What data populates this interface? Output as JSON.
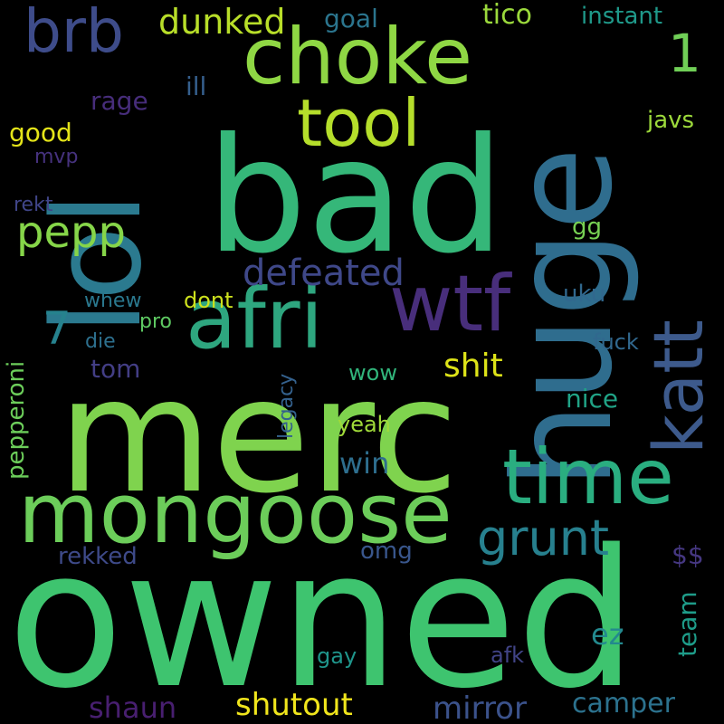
{
  "words": [
    {
      "text": "owned",
      "color": "#3ec46f"
    },
    {
      "text": "merc",
      "color": "#7fd34e"
    },
    {
      "text": "bad",
      "color": "#35b779"
    },
    {
      "text": "huge",
      "color": "#2f6d8e"
    },
    {
      "text": "lol",
      "color": "#2b7a8f"
    },
    {
      "text": "mongoose",
      "color": "#6ccd5a"
    },
    {
      "text": "choke",
      "color": "#8fd744"
    },
    {
      "text": "afri",
      "color": "#2ea67f"
    },
    {
      "text": "time",
      "color": "#2aae80"
    },
    {
      "text": "katt",
      "color": "#3d5a8c"
    },
    {
      "text": "wtf",
      "color": "#482e7b"
    },
    {
      "text": "tool",
      "color": "#b5de2b"
    },
    {
      "text": "brb",
      "color": "#3e4c8a"
    },
    {
      "text": "grunt",
      "color": "#27808e"
    },
    {
      "text": "pepp",
      "color": "#86d549"
    },
    {
      "text": "defeated",
      "color": "#3f4889"
    },
    {
      "text": "dunked",
      "color": "#b8de29"
    },
    {
      "text": "1",
      "color": "#70cf57"
    },
    {
      "text": "7",
      "color": "#26828e"
    },
    {
      "text": "shit",
      "color": "#dde318"
    },
    {
      "text": "shutout",
      "color": "#f0e51c"
    },
    {
      "text": "mirror",
      "color": "#3b528b"
    },
    {
      "text": "shaun",
      "color": "#481f70"
    },
    {
      "text": "camper",
      "color": "#2c728e"
    },
    {
      "text": "pepperoni",
      "color": "#6ccd5a"
    },
    {
      "text": "win",
      "color": "#2e6e8e"
    },
    {
      "text": "tom",
      "color": "#433e85"
    },
    {
      "text": "good",
      "color": "#e4e419"
    },
    {
      "text": "rage",
      "color": "#472d7b"
    },
    {
      "text": "ill",
      "color": "#355f8d"
    },
    {
      "text": "goal",
      "color": "#2b758e"
    },
    {
      "text": "tico",
      "color": "#9bd93c"
    },
    {
      "text": "instant",
      "color": "#1f998a"
    },
    {
      "text": "javs",
      "color": "#9cd93b"
    },
    {
      "text": "gg",
      "color": "#77d153"
    },
    {
      "text": "mvp",
      "color": "#46327e"
    },
    {
      "text": "rekt",
      "color": "#404588"
    },
    {
      "text": "whew",
      "color": "#2a788e"
    },
    {
      "text": "dont",
      "color": "#cde11d"
    },
    {
      "text": "pro",
      "color": "#5ec962"
    },
    {
      "text": "die",
      "color": "#2d708e"
    },
    {
      "text": "uku",
      "color": "#31688e"
    },
    {
      "text": "fuck",
      "color": "#31688e"
    },
    {
      "text": "nice",
      "color": "#20a386"
    },
    {
      "text": "wow",
      "color": "#31b57b"
    },
    {
      "text": "yeah",
      "color": "#a0da39"
    },
    {
      "text": "legacy",
      "color": "#34618d"
    },
    {
      "text": "$$",
      "color": "#453781"
    },
    {
      "text": "omg",
      "color": "#39568c"
    },
    {
      "text": "rekked",
      "color": "#3e4a89"
    },
    {
      "text": "team",
      "color": "#1e9c89"
    },
    {
      "text": "ez",
      "color": "#23898e"
    },
    {
      "text": "gay",
      "color": "#1f958b"
    },
    {
      "text": "afk",
      "color": "#414487"
    }
  ]
}
